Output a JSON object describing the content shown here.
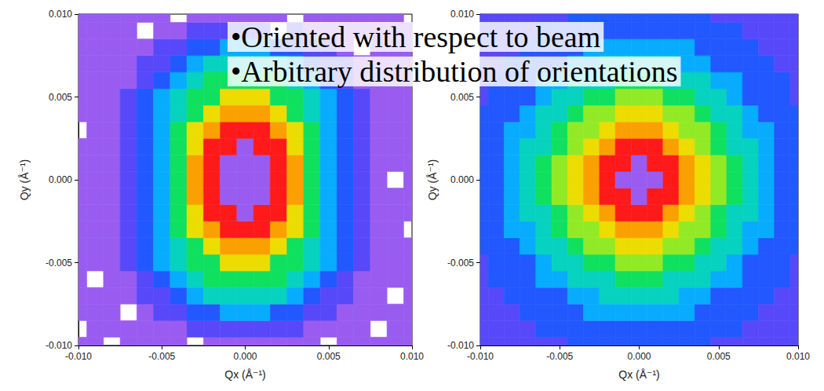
{
  "chart_data": [
    {
      "type": "heatmap",
      "x_label": "Qx (Å⁻¹)",
      "y_label": "Qy (Å⁻¹)",
      "xlim": [
        -0.01,
        0.01
      ],
      "ylim": [
        -0.01,
        0.01
      ],
      "xticks": [
        {
          "value": -0.01,
          "label": "-0.010"
        },
        {
          "value": -0.005,
          "label": "-0.005"
        },
        {
          "value": 0,
          "label": "0.000"
        },
        {
          "value": 0.005,
          "label": "0.005"
        },
        {
          "value": 0.01,
          "label": "0.010"
        }
      ],
      "yticks": [
        {
          "value": -0.01,
          "label": "-0.010"
        },
        {
          "value": -0.005,
          "label": "-0.005"
        },
        {
          "value": 0,
          "label": "0.000"
        },
        {
          "value": 0.005,
          "label": "0.005"
        },
        {
          "value": 0.01,
          "label": "0.010"
        }
      ],
      "grid": false,
      "zlim": [
        0,
        10
      ],
      "x": [
        -0.01,
        -0.009,
        -0.008,
        -0.007,
        -0.006,
        -0.005,
        -0.004,
        -0.003,
        -0.002,
        -0.001,
        0,
        0.001,
        0.002,
        0.003,
        0.004,
        0.005,
        0.006,
        0.007,
        0.008,
        0.009,
        0.01
      ],
      "y": [
        -0.01,
        -0.009,
        -0.008,
        -0.007,
        -0.006,
        -0.005,
        -0.004,
        -0.003,
        -0.002,
        -0.001,
        0,
        0.001,
        0.002,
        0.003,
        0.004,
        0.005,
        0.006,
        0.007,
        0.008,
        0.009,
        0.01
      ],
      "cells": [
        [
          0,
          0,
          null,
          0,
          0,
          0,
          0,
          null,
          0,
          0,
          0,
          0,
          0,
          0,
          0,
          null,
          0,
          0,
          0,
          0,
          0
        ],
        [
          null,
          0,
          0,
          0,
          0,
          0,
          0,
          1,
          1,
          1,
          1,
          1,
          1,
          1,
          0,
          0,
          0,
          0,
          null,
          0,
          0
        ],
        [
          0,
          0,
          0,
          null,
          0,
          1,
          1,
          2,
          2,
          3,
          3,
          3,
          2,
          2,
          1,
          1,
          0,
          0,
          0,
          0,
          0
        ],
        [
          0,
          0,
          0,
          0,
          1,
          1,
          2,
          3,
          4,
          4,
          4,
          4,
          4,
          3,
          2,
          1,
          1,
          0,
          0,
          null,
          0
        ],
        [
          0,
          null,
          0,
          0,
          1,
          2,
          3,
          4,
          5,
          5,
          5,
          5,
          5,
          4,
          3,
          2,
          1,
          0,
          0,
          0,
          0
        ],
        [
          0,
          0,
          0,
          1,
          2,
          3,
          4,
          5,
          5,
          7,
          7,
          7,
          5,
          5,
          4,
          3,
          2,
          1,
          0,
          0,
          0
        ],
        [
          0,
          0,
          0,
          1,
          2,
          3,
          4,
          5,
          7,
          8,
          8,
          8,
          7,
          5,
          4,
          3,
          2,
          1,
          0,
          0,
          0
        ],
        [
          0,
          0,
          0,
          1,
          2,
          3,
          5,
          7,
          8,
          10,
          10,
          10,
          8,
          7,
          5,
          3,
          2,
          1,
          0,
          0,
          null
        ],
        [
          0,
          0,
          0,
          1,
          2,
          3,
          5,
          7,
          10,
          10,
          0,
          10,
          10,
          7,
          5,
          3,
          2,
          1,
          0,
          0,
          0
        ],
        [
          0,
          0,
          0,
          1,
          2,
          3,
          5,
          8,
          10,
          0,
          0,
          0,
          10,
          8,
          5,
          3,
          2,
          1,
          0,
          0,
          0
        ],
        [
          0,
          0,
          0,
          1,
          2,
          3,
          5,
          8,
          10,
          0,
          0,
          0,
          10,
          8,
          5,
          3,
          2,
          1,
          0,
          null,
          0
        ],
        [
          0,
          0,
          0,
          1,
          2,
          3,
          5,
          8,
          10,
          0,
          0,
          0,
          10,
          8,
          5,
          3,
          2,
          1,
          0,
          0,
          0
        ],
        [
          0,
          0,
          0,
          1,
          2,
          3,
          5,
          7,
          10,
          10,
          0,
          10,
          10,
          7,
          5,
          3,
          2,
          1,
          0,
          0,
          0
        ],
        [
          null,
          0,
          0,
          1,
          2,
          3,
          5,
          7,
          8,
          10,
          10,
          10,
          8,
          7,
          5,
          3,
          2,
          1,
          0,
          0,
          0
        ],
        [
          0,
          0,
          0,
          1,
          2,
          3,
          4,
          5,
          7,
          8,
          8,
          8,
          7,
          5,
          4,
          3,
          2,
          1,
          0,
          0,
          0
        ],
        [
          0,
          0,
          0,
          1,
          2,
          3,
          4,
          5,
          5,
          7,
          7,
          7,
          5,
          5,
          4,
          3,
          2,
          1,
          0,
          0,
          0
        ],
        [
          0,
          0,
          0,
          0,
          1,
          2,
          3,
          4,
          5,
          5,
          5,
          5,
          5,
          4,
          3,
          2,
          1,
          0,
          0,
          0,
          0
        ],
        [
          0,
          0,
          0,
          0,
          1,
          1,
          2,
          3,
          4,
          4,
          4,
          4,
          4,
          3,
          2,
          1,
          1,
          0,
          0,
          0,
          0
        ],
        [
          0,
          0,
          0,
          0,
          0,
          1,
          1,
          2,
          2,
          3,
          3,
          3,
          2,
          2,
          1,
          1,
          0,
          null,
          0,
          0,
          0
        ],
        [
          0,
          0,
          0,
          0,
          null,
          0,
          0,
          1,
          1,
          1,
          1,
          1,
          null,
          1,
          0,
          0,
          0,
          0,
          0,
          0,
          0
        ],
        [
          0,
          0,
          0,
          0,
          0,
          0,
          null,
          0,
          0,
          0,
          0,
          0,
          0,
          null,
          0,
          0,
          0,
          0,
          0,
          0,
          null
        ]
      ]
    },
    {
      "type": "heatmap",
      "x_label": "Qx (Å⁻¹)",
      "y_label": "Qy (Å⁻¹)",
      "xlim": [
        -0.01,
        0.01
      ],
      "ylim": [
        -0.01,
        0.01
      ],
      "xticks": [
        {
          "value": -0.01,
          "label": "-0.010"
        },
        {
          "value": -0.005,
          "label": "-0.005"
        },
        {
          "value": 0,
          "label": "0.000"
        },
        {
          "value": 0.005,
          "label": "0.005"
        },
        {
          "value": 0.01,
          "label": "0.010"
        }
      ],
      "yticks": [
        {
          "value": -0.01,
          "label": "-0.010"
        },
        {
          "value": -0.005,
          "label": "-0.005"
        },
        {
          "value": 0,
          "label": "0.000"
        },
        {
          "value": 0.005,
          "label": "0.005"
        },
        {
          "value": 0.01,
          "label": "0.010"
        }
      ],
      "grid": false,
      "zlim": [
        0,
        10
      ],
      "x": [
        -0.01,
        -0.009,
        -0.008,
        -0.007,
        -0.006,
        -0.005,
        -0.004,
        -0.003,
        -0.002,
        -0.001,
        0,
        0.001,
        0.002,
        0.003,
        0.004,
        0.005,
        0.006,
        0.007,
        0.008,
        0.009,
        0.01
      ],
      "y": [
        -0.01,
        -0.009,
        -0.008,
        -0.007,
        -0.006,
        -0.005,
        -0.004,
        -0.003,
        -0.002,
        -0.001,
        0,
        0.001,
        0.002,
        0.003,
        0.004,
        0.005,
        0.006,
        0.007,
        0.008,
        0.009,
        0.01
      ],
      "cells": [
        [
          1,
          1,
          1,
          1,
          1,
          1,
          2,
          2,
          2,
          2,
          2,
          2,
          2,
          2,
          2,
          1,
          1,
          1,
          1,
          1,
          1
        ],
        [
          1,
          1,
          1,
          1,
          2,
          2,
          2,
          2,
          2,
          2,
          2,
          2,
          2,
          2,
          2,
          2,
          2,
          1,
          1,
          1,
          1
        ],
        [
          1,
          1,
          1,
          2,
          2,
          2,
          2,
          3,
          3,
          3,
          3,
          3,
          3,
          3,
          2,
          2,
          2,
          2,
          1,
          1,
          1
        ],
        [
          1,
          1,
          2,
          2,
          2,
          2,
          3,
          3,
          4,
          4,
          4,
          4,
          4,
          3,
          3,
          2,
          2,
          2,
          2,
          1,
          1
        ],
        [
          1,
          2,
          2,
          2,
          3,
          3,
          4,
          4,
          4,
          5,
          5,
          5,
          4,
          4,
          4,
          3,
          3,
          2,
          2,
          2,
          1
        ],
        [
          1,
          2,
          2,
          2,
          3,
          4,
          4,
          5,
          5,
          6,
          6,
          6,
          5,
          5,
          4,
          4,
          3,
          2,
          2,
          2,
          1
        ],
        [
          2,
          2,
          2,
          3,
          4,
          4,
          5,
          6,
          6,
          7,
          7,
          7,
          6,
          6,
          5,
          4,
          4,
          3,
          2,
          2,
          2
        ],
        [
          2,
          2,
          3,
          3,
          4,
          5,
          6,
          6,
          7,
          8,
          8,
          8,
          7,
          6,
          6,
          5,
          4,
          3,
          3,
          2,
          2
        ],
        [
          2,
          2,
          3,
          4,
          4,
          5,
          6,
          7,
          8,
          10,
          10,
          10,
          8,
          7,
          6,
          5,
          4,
          4,
          3,
          2,
          2
        ],
        [
          2,
          2,
          3,
          4,
          5,
          6,
          7,
          8,
          10,
          10,
          0,
          10,
          10,
          8,
          7,
          6,
          5,
          4,
          3,
          2,
          2
        ],
        [
          2,
          2,
          3,
          4,
          5,
          6,
          7,
          8,
          10,
          0,
          0,
          0,
          10,
          8,
          7,
          6,
          5,
          4,
          3,
          2,
          2
        ],
        [
          2,
          2,
          3,
          4,
          5,
          6,
          7,
          8,
          10,
          10,
          0,
          10,
          10,
          8,
          7,
          6,
          5,
          4,
          3,
          2,
          2
        ],
        [
          2,
          2,
          3,
          4,
          4,
          5,
          6,
          7,
          8,
          10,
          10,
          10,
          8,
          7,
          6,
          5,
          4,
          4,
          3,
          2,
          2
        ],
        [
          2,
          2,
          3,
          3,
          4,
          5,
          6,
          6,
          7,
          8,
          8,
          8,
          7,
          6,
          6,
          5,
          4,
          3,
          3,
          2,
          2
        ],
        [
          2,
          2,
          2,
          3,
          4,
          4,
          5,
          6,
          6,
          7,
          7,
          7,
          6,
          6,
          5,
          4,
          4,
          3,
          2,
          2,
          2
        ],
        [
          1,
          2,
          2,
          2,
          3,
          4,
          4,
          5,
          5,
          6,
          6,
          6,
          5,
          5,
          4,
          4,
          3,
          2,
          2,
          2,
          1
        ],
        [
          1,
          2,
          2,
          2,
          3,
          3,
          4,
          4,
          4,
          5,
          5,
          5,
          4,
          4,
          4,
          3,
          3,
          2,
          2,
          2,
          1
        ],
        [
          1,
          1,
          2,
          2,
          2,
          2,
          3,
          3,
          4,
          4,
          4,
          4,
          4,
          3,
          3,
          2,
          2,
          2,
          2,
          1,
          1
        ],
        [
          1,
          1,
          1,
          2,
          2,
          2,
          2,
          3,
          3,
          3,
          3,
          3,
          3,
          3,
          2,
          2,
          2,
          2,
          1,
          1,
          1
        ],
        [
          1,
          1,
          1,
          1,
          2,
          2,
          2,
          2,
          2,
          2,
          2,
          2,
          2,
          2,
          2,
          2,
          2,
          1,
          1,
          1,
          1
        ],
        [
          1,
          1,
          1,
          1,
          1,
          1,
          2,
          2,
          2,
          2,
          2,
          2,
          2,
          2,
          2,
          1,
          1,
          1,
          1,
          1,
          1
        ]
      ]
    }
  ],
  "annotations": [
    "•Oriented with respect to beam",
    "•Arbitrary distribution of orientations"
  ]
}
